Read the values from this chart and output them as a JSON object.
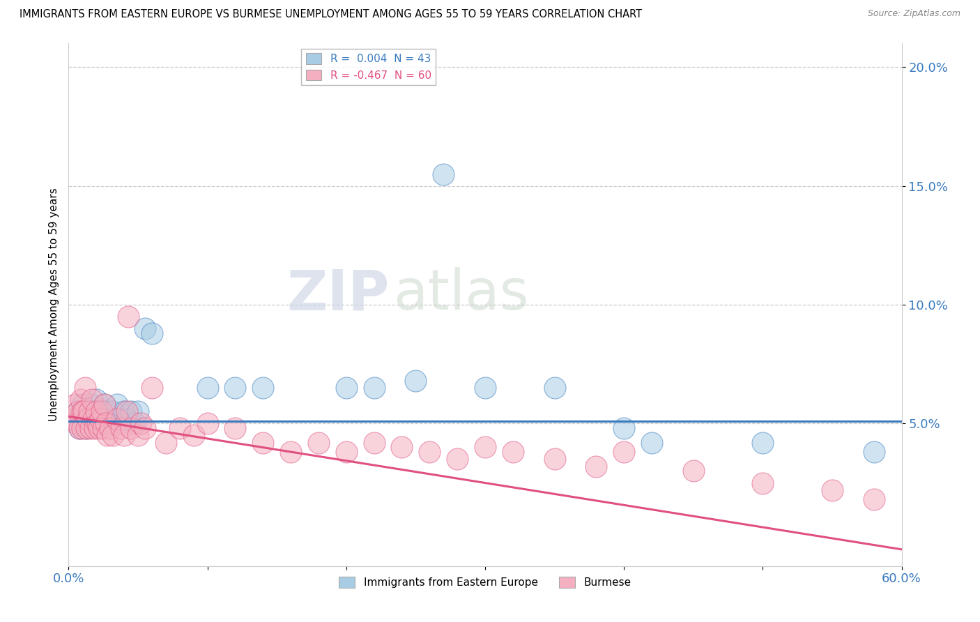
{
  "title": "IMMIGRANTS FROM EASTERN EUROPE VS BURMESE UNEMPLOYMENT AMONG AGES 55 TO 59 YEARS CORRELATION CHART",
  "source": "Source: ZipAtlas.com",
  "ylabel": "Unemployment Among Ages 55 to 59 years",
  "xlim": [
    0.0,
    0.6
  ],
  "ylim": [
    -0.01,
    0.21
  ],
  "xticks": [
    0.0,
    0.6
  ],
  "xticklabels": [
    "0.0%",
    "60.0%"
  ],
  "yticks": [
    0.05,
    0.1,
    0.15,
    0.2
  ],
  "yticklabels": [
    "5.0%",
    "10.0%",
    "15.0%",
    "20.0%"
  ],
  "legend_items": [
    {
      "label": "R =  0.004  N = 43",
      "color": "#a8cce4"
    },
    {
      "label": "R = -0.467  N = 60",
      "color": "#f4afc0"
    }
  ],
  "blue_color": "#a8cce4",
  "pink_color": "#f4afc0",
  "blue_line_color": "#3a7bbf",
  "pink_line_color": "#e05080",
  "watermark_zip": "ZIP",
  "watermark_atlas": "atlas",
  "blue_scatter": [
    [
      0.005,
      0.052
    ],
    [
      0.007,
      0.055
    ],
    [
      0.008,
      0.048
    ],
    [
      0.01,
      0.058
    ],
    [
      0.01,
      0.05
    ],
    [
      0.012,
      0.055
    ],
    [
      0.013,
      0.048
    ],
    [
      0.015,
      0.055
    ],
    [
      0.016,
      0.052
    ],
    [
      0.017,
      0.058
    ],
    [
      0.018,
      0.05
    ],
    [
      0.019,
      0.055
    ],
    [
      0.02,
      0.06
    ],
    [
      0.022,
      0.053
    ],
    [
      0.023,
      0.055
    ],
    [
      0.025,
      0.05
    ],
    [
      0.026,
      0.058
    ],
    [
      0.027,
      0.052
    ],
    [
      0.028,
      0.055
    ],
    [
      0.03,
      0.052
    ],
    [
      0.032,
      0.055
    ],
    [
      0.035,
      0.058
    ],
    [
      0.038,
      0.05
    ],
    [
      0.04,
      0.055
    ],
    [
      0.042,
      0.052
    ],
    [
      0.045,
      0.055
    ],
    [
      0.048,
      0.05
    ],
    [
      0.05,
      0.055
    ],
    [
      0.055,
      0.09
    ],
    [
      0.06,
      0.088
    ],
    [
      0.1,
      0.065
    ],
    [
      0.12,
      0.065
    ],
    [
      0.14,
      0.065
    ],
    [
      0.2,
      0.065
    ],
    [
      0.22,
      0.065
    ],
    [
      0.25,
      0.068
    ],
    [
      0.27,
      0.155
    ],
    [
      0.3,
      0.065
    ],
    [
      0.35,
      0.065
    ],
    [
      0.4,
      0.048
    ],
    [
      0.42,
      0.042
    ],
    [
      0.5,
      0.042
    ],
    [
      0.58,
      0.038
    ]
  ],
  "pink_scatter": [
    [
      0.003,
      0.052
    ],
    [
      0.005,
      0.058
    ],
    [
      0.006,
      0.05
    ],
    [
      0.007,
      0.055
    ],
    [
      0.008,
      0.048
    ],
    [
      0.009,
      0.06
    ],
    [
      0.01,
      0.055
    ],
    [
      0.01,
      0.048
    ],
    [
      0.011,
      0.055
    ],
    [
      0.012,
      0.065
    ],
    [
      0.013,
      0.048
    ],
    [
      0.014,
      0.052
    ],
    [
      0.015,
      0.055
    ],
    [
      0.016,
      0.048
    ],
    [
      0.017,
      0.06
    ],
    [
      0.018,
      0.052
    ],
    [
      0.019,
      0.048
    ],
    [
      0.02,
      0.055
    ],
    [
      0.021,
      0.05
    ],
    [
      0.022,
      0.048
    ],
    [
      0.023,
      0.052
    ],
    [
      0.024,
      0.055
    ],
    [
      0.025,
      0.048
    ],
    [
      0.026,
      0.058
    ],
    [
      0.027,
      0.05
    ],
    [
      0.028,
      0.045
    ],
    [
      0.03,
      0.048
    ],
    [
      0.032,
      0.045
    ],
    [
      0.035,
      0.052
    ],
    [
      0.038,
      0.048
    ],
    [
      0.04,
      0.045
    ],
    [
      0.042,
      0.055
    ],
    [
      0.043,
      0.095
    ],
    [
      0.045,
      0.048
    ],
    [
      0.05,
      0.045
    ],
    [
      0.052,
      0.05
    ],
    [
      0.055,
      0.048
    ],
    [
      0.06,
      0.065
    ],
    [
      0.07,
      0.042
    ],
    [
      0.08,
      0.048
    ],
    [
      0.09,
      0.045
    ],
    [
      0.1,
      0.05
    ],
    [
      0.12,
      0.048
    ],
    [
      0.14,
      0.042
    ],
    [
      0.16,
      0.038
    ],
    [
      0.18,
      0.042
    ],
    [
      0.2,
      0.038
    ],
    [
      0.22,
      0.042
    ],
    [
      0.24,
      0.04
    ],
    [
      0.26,
      0.038
    ],
    [
      0.28,
      0.035
    ],
    [
      0.3,
      0.04
    ],
    [
      0.32,
      0.038
    ],
    [
      0.35,
      0.035
    ],
    [
      0.38,
      0.032
    ],
    [
      0.4,
      0.038
    ],
    [
      0.45,
      0.03
    ],
    [
      0.5,
      0.025
    ],
    [
      0.55,
      0.022
    ],
    [
      0.58,
      0.018
    ]
  ],
  "blue_line_y0": 0.051,
  "blue_line_y1": 0.051,
  "pink_line_y0": 0.053,
  "pink_line_y1": -0.003
}
